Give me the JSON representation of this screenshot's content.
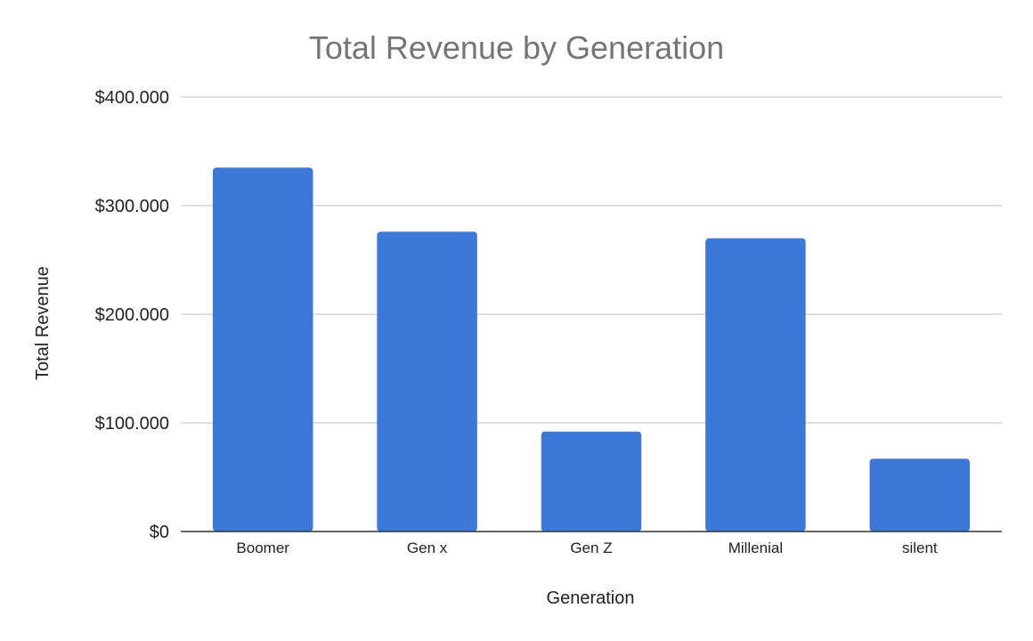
{
  "chart_data": {
    "type": "bar",
    "title": "Total Revenue by Generation",
    "xlabel": "Generation",
    "ylabel": "Total Revenue",
    "categories": [
      "Boomer",
      "Gen x",
      "Gen Z",
      "Millenial",
      "silent"
    ],
    "values": [
      335000,
      276000,
      92000,
      270000,
      67000
    ],
    "ylim": [
      0,
      400000
    ],
    "yticks": [
      0,
      100000,
      200000,
      300000,
      400000
    ],
    "ytick_labels": [
      "$0",
      "$100.000",
      "$200.000",
      "$300.000",
      "$400.000"
    ],
    "grid": true,
    "legend": "none",
    "bar_color": "#3b78d8"
  }
}
